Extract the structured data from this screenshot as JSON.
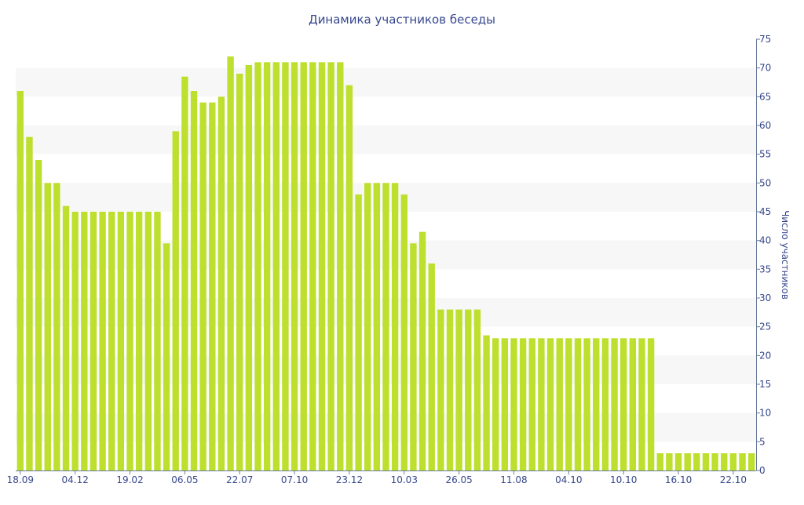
{
  "chart_data": {
    "type": "bar",
    "title": "Динамика участников беседы",
    "ylabel": "Число участников",
    "xlabel": "",
    "ylim": [
      0,
      75
    ],
    "yticks": [
      0,
      5,
      10,
      15,
      20,
      25,
      30,
      35,
      40,
      45,
      50,
      55,
      60,
      65,
      70,
      75
    ],
    "grid": "alternating horizontal bands",
    "y_axis_side": "right",
    "x_tick_labels": [
      {
        "bar_index": 0,
        "label": "18.09"
      },
      {
        "bar_index": 6,
        "label": "04.12"
      },
      {
        "bar_index": 12,
        "label": "19.02"
      },
      {
        "bar_index": 18,
        "label": "06.05"
      },
      {
        "bar_index": 24,
        "label": "22.07"
      },
      {
        "bar_index": 30,
        "label": "07.10"
      },
      {
        "bar_index": 36,
        "label": "23.12"
      },
      {
        "bar_index": 42,
        "label": "10.03"
      },
      {
        "bar_index": 48,
        "label": "26.05"
      },
      {
        "bar_index": 54,
        "label": "11.08"
      },
      {
        "bar_index": 60,
        "label": "04.10"
      },
      {
        "bar_index": 66,
        "label": "10.10"
      },
      {
        "bar_index": 72,
        "label": "16.10"
      },
      {
        "bar_index": 78,
        "label": "22.10"
      }
    ],
    "values": [
      66,
      58,
      54,
      50,
      50,
      46,
      45,
      45,
      45,
      45,
      45,
      45,
      45,
      45,
      45,
      45,
      39.5,
      59,
      68.5,
      66,
      64,
      64,
      65,
      72,
      69,
      70.5,
      71,
      71,
      71,
      71,
      71,
      71,
      71,
      71,
      71,
      71,
      67,
      48,
      50,
      50,
      50,
      50,
      48,
      39.5,
      41.5,
      36,
      28,
      28,
      28,
      28,
      28,
      23.5,
      23,
      23,
      23,
      23,
      23,
      23,
      23,
      23,
      23,
      23,
      23,
      23,
      23,
      23,
      23,
      23,
      23,
      23,
      3,
      3,
      3,
      3,
      3,
      3,
      3,
      3,
      3,
      3,
      3
    ],
    "colors": {
      "bar": "#bddf2d",
      "band": "#f7f7f7",
      "axis_text": "#36478c",
      "axis_line": "#6a7a9a"
    }
  }
}
